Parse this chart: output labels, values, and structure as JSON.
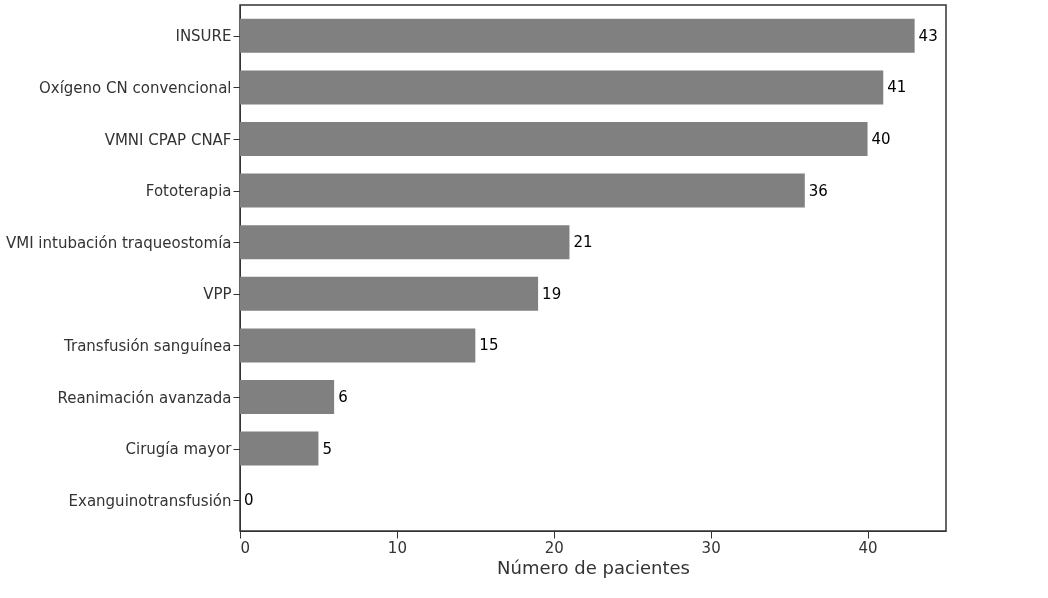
{
  "chart_data": {
    "type": "bar",
    "orientation": "horizontal",
    "xlabel": "Número de pacientes",
    "categories": [
      "INSURE",
      "Oxígeno CN convencional",
      "VMNI CPAP CNAF",
      "Fototerapia",
      "VMI intubación traqueostomía",
      "VPP",
      "Transfusión sanguínea",
      "Reanimación avanzada",
      "Cirugía mayor",
      "Exanguinotransfusión"
    ],
    "values": [
      43,
      41,
      40,
      36,
      21,
      19,
      15,
      6,
      5,
      0
    ],
    "color": "#808080",
    "xlim": [
      0,
      45
    ],
    "xticks": [
      0,
      10,
      20,
      30,
      40
    ],
    "data_labels": true
  }
}
